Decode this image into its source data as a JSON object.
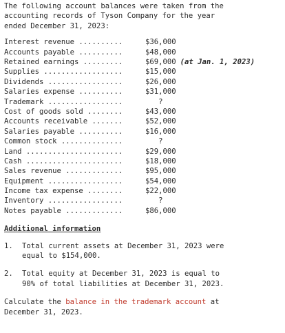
{
  "intro": "The following account balances were taken from the\naccounting records of Tyson Company for the year\nended December 31, 2023:",
  "accounts": [
    {
      "label": "Interest revenue ..........",
      "value": "$36,000",
      "note": ""
    },
    {
      "label": "Accounts payable ..........",
      "value": "$48,000",
      "note": ""
    },
    {
      "label": "Retained earnings .........",
      "value": "$69,000",
      "note": "(at Jan. 1, 2023)"
    },
    {
      "label": "Supplies ..................",
      "value": "$15,000",
      "note": ""
    },
    {
      "label": "Dividends .................",
      "value": "$26,000",
      "note": ""
    },
    {
      "label": "Salaries expense ..........",
      "value": "$31,000",
      "note": ""
    },
    {
      "label": "Trademark .................",
      "value": "   ?",
      "note": ""
    },
    {
      "label": "Cost of goods sold ........",
      "value": "$43,000",
      "note": ""
    },
    {
      "label": "Accounts receivable .......",
      "value": "$52,000",
      "note": ""
    },
    {
      "label": "Salaries payable ..........",
      "value": "$16,000",
      "note": ""
    },
    {
      "label": "Common stock ..............",
      "value": "   ?",
      "note": ""
    },
    {
      "label": "Land ......................",
      "value": "$29,000",
      "note": ""
    },
    {
      "label": "Cash ......................",
      "value": "$18,000",
      "note": ""
    },
    {
      "label": "Sales revenue .............",
      "value": "$95,000",
      "note": ""
    },
    {
      "label": "Equipment .................",
      "value": "$54,000",
      "note": ""
    },
    {
      "label": "Income tax expense ........",
      "value": "$22,000",
      "note": ""
    },
    {
      "label": "Inventory .................",
      "value": "   ?",
      "note": ""
    },
    {
      "label": "Notes payable .............",
      "value": "$86,000",
      "note": ""
    }
  ],
  "additional_heading": "Additional information",
  "notes": [
    {
      "num": "1.",
      "text": "Total current assets at December 31, 2023 were\nequal to $154,000."
    },
    {
      "num": "2.",
      "text": "Total equity at December 31, 2023 is equal to\n90% of total liabilities at December 31, 2023."
    }
  ],
  "question": {
    "before": "Calculate the ",
    "highlight": "balance in the trademark account",
    "after": " at\nDecember 31, 2023.",
    "highlight_color": "#c0392b"
  }
}
